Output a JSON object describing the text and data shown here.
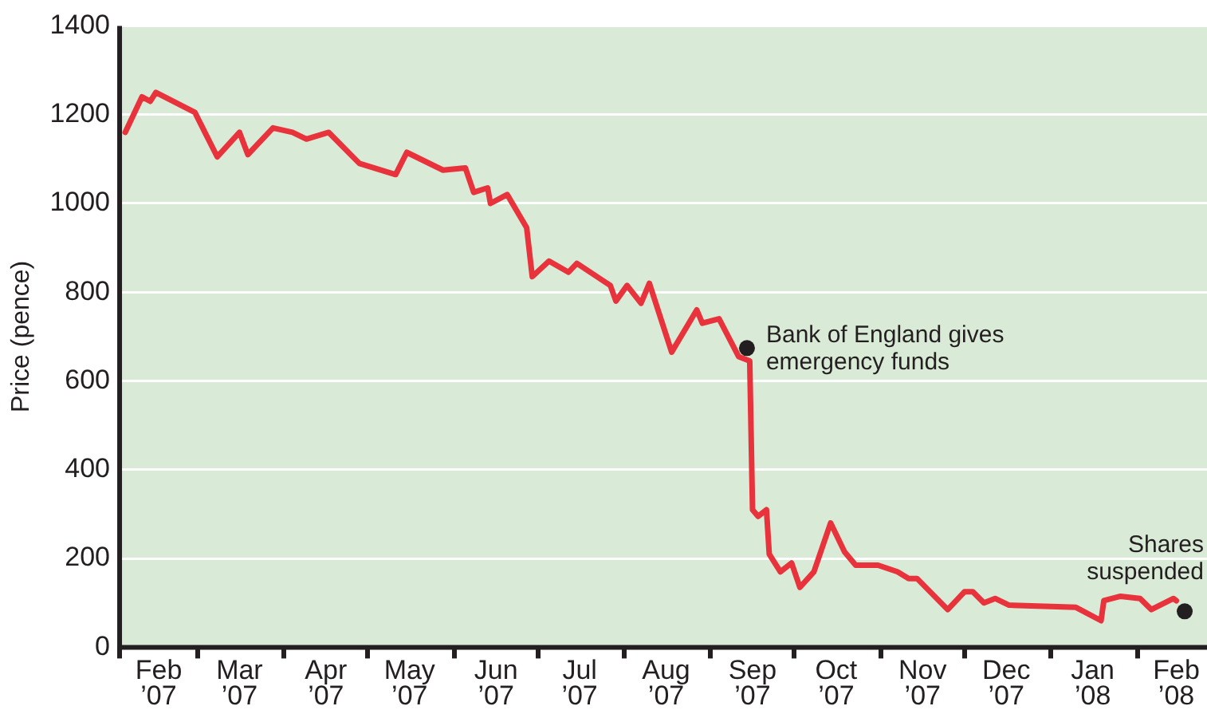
{
  "chart_data": {
    "type": "line",
    "ylabel": "Price (pence)",
    "series": [
      {
        "color": "#e8323c",
        "x": [
          "2007-02-03",
          "2007-02-09",
          "2007-02-12",
          "2007-02-14",
          "2007-02-28",
          "2007-03-08",
          "2007-03-16",
          "2007-03-19",
          "2007-03-28",
          "2007-04-04",
          "2007-04-09",
          "2007-04-17",
          "2007-04-28",
          "2007-05-11",
          "2007-05-15",
          "2007-05-28",
          "2007-06-05",
          "2007-06-08",
          "2007-06-13",
          "2007-06-14",
          "2007-06-20",
          "2007-06-27",
          "2007-06-29",
          "2007-07-05",
          "2007-07-12",
          "2007-07-15",
          "2007-07-27",
          "2007-07-29",
          "2007-08-02",
          "2007-08-07",
          "2007-08-10",
          "2007-08-18",
          "2007-08-27",
          "2007-08-29",
          "2007-09-04",
          "2007-09-11",
          "2007-09-13",
          "2007-09-15",
          "2007-09-16",
          "2007-09-18",
          "2007-09-21",
          "2007-09-22",
          "2007-09-26",
          "2007-09-30",
          "2007-10-03",
          "2007-10-08",
          "2007-10-14",
          "2007-10-19",
          "2007-10-23",
          "2007-10-31",
          "2007-11-07",
          "2007-11-11",
          "2007-11-14",
          "2007-11-25",
          "2007-12-01",
          "2007-12-04",
          "2007-12-08",
          "2007-12-12",
          "2007-12-17",
          "2008-01-10",
          "2008-01-19",
          "2008-01-20",
          "2008-01-26",
          "2008-02-02",
          "2008-02-06",
          "2008-02-14",
          "2008-02-15"
        ],
        "values": [
          1160,
          1240,
          1230,
          1250,
          1205,
          1105,
          1160,
          1110,
          1170,
          1160,
          1145,
          1160,
          1090,
          1065,
          1115,
          1075,
          1080,
          1025,
          1035,
          1000,
          1020,
          945,
          835,
          870,
          845,
          865,
          815,
          780,
          815,
          775,
          820,
          665,
          760,
          730,
          740,
          655,
          650,
          645,
          310,
          295,
          310,
          210,
          170,
          190,
          135,
          170,
          280,
          215,
          185,
          185,
          170,
          155,
          155,
          85,
          125,
          125,
          100,
          110,
          95,
          90,
          60,
          105,
          115,
          110,
          85,
          110,
          105
        ]
      }
    ],
    "xlim": [
      "2007-02-01",
      "2008-02-26"
    ],
    "xticks": [
      {
        "value": "2007-02-01",
        "label": null
      },
      {
        "value": "2007-02-15",
        "label": "Feb ’07"
      },
      {
        "value": "2007-03-01",
        "label": null
      },
      {
        "value": "2007-03-16",
        "label": "Mar ’07"
      },
      {
        "value": "2007-04-01",
        "label": null
      },
      {
        "value": "2007-04-16",
        "label": "Apr ’07"
      },
      {
        "value": "2007-05-01",
        "label": null
      },
      {
        "value": "2007-05-16",
        "label": "May ’07"
      },
      {
        "value": "2007-06-01",
        "label": null
      },
      {
        "value": "2007-06-16",
        "label": "Jun ’07"
      },
      {
        "value": "2007-07-01",
        "label": null
      },
      {
        "value": "2007-07-16",
        "label": "Jul ’07"
      },
      {
        "value": "2007-08-01",
        "label": null
      },
      {
        "value": "2007-08-16",
        "label": "Aug ’07"
      },
      {
        "value": "2007-09-01",
        "label": null
      },
      {
        "value": "2007-09-16",
        "label": "Sep ’07"
      },
      {
        "value": "2007-10-01",
        "label": null
      },
      {
        "value": "2007-10-16",
        "label": "Oct ’07"
      },
      {
        "value": "2007-11-01",
        "label": null
      },
      {
        "value": "2007-11-16",
        "label": "Nov ’07"
      },
      {
        "value": "2007-12-01",
        "label": null
      },
      {
        "value": "2007-12-16",
        "label": "Dec ’07"
      },
      {
        "value": "2008-01-01",
        "label": null
      },
      {
        "value": "2008-01-16",
        "label": "Jan ’08"
      },
      {
        "value": "2008-02-01",
        "label": null
      },
      {
        "value": "2008-02-15",
        "label": "Feb ’08"
      }
    ],
    "ylim": [
      0,
      1400
    ],
    "yticks": [
      0,
      200,
      400,
      600,
      800,
      1000,
      1200,
      1400
    ],
    "grid": "y",
    "legend": false,
    "marker": "none",
    "line_style": "solid",
    "annotations": [
      {
        "text": "Bank of England gives emergency funds",
        "x": "2007-09-14",
        "y": 674
      },
      {
        "text": "Shares suspended",
        "x": "2008-02-18",
        "y": 81
      }
    ]
  }
}
